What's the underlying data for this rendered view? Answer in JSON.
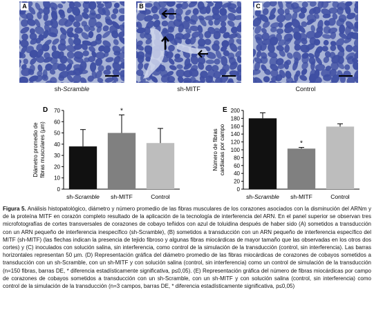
{
  "panels": [
    {
      "letter": "A",
      "caption_italic": "Scramble",
      "caption_prefix": "sh-"
    },
    {
      "letter": "B",
      "caption": "sh-MITF"
    },
    {
      "letter": "C",
      "caption": "Control"
    }
  ],
  "colors": {
    "fiber": "#3f4fa3",
    "space": "#a9b4d6",
    "bar_scramble": "#111111",
    "bar_mitf": "#808080",
    "bar_control": "#bdbdbd"
  },
  "chart_data": [
    {
      "type": "bar",
      "panel_letter": "D",
      "categories": [
        "sh-Scramble",
        "sh-MITF",
        "Control"
      ],
      "values": [
        38,
        50,
        41
      ],
      "errors": [
        15,
        16,
        13
      ],
      "significance": [
        "",
        "*",
        ""
      ],
      "ylabel": "Diámetro promedio de fibras musculares (µm)",
      "ylim": [
        0,
        70
      ],
      "yticks": [
        0,
        10,
        20,
        30,
        40,
        50,
        60,
        70
      ]
    },
    {
      "type": "bar",
      "panel_letter": "E",
      "categories": [
        "sh-Scramble",
        "sh-MITF",
        "Control"
      ],
      "values": [
        180,
        103,
        159
      ],
      "errors": [
        14,
        3,
        7
      ],
      "significance": [
        "",
        "*",
        ""
      ],
      "ylabel": "Número de fibras cardiacas por campo",
      "ylim": [
        0,
        200
      ],
      "yticks": [
        0,
        20,
        40,
        60,
        80,
        100,
        120,
        140,
        160,
        180,
        200
      ]
    }
  ],
  "caption": {
    "label": "Figura 5.",
    "body": " Análisis histopatológico, diámetro y número promedio de las fibras musculares de los corazones asociados con la disminución del ARNm y de la proteína MITF en corazón completo resultado de la aplicación de la tecnología de interferencia del ARN. En el panel superior se observan tres microfotografías de cortes transversales de corazones de cobayo teñidos con azul de toluidina después de haber sido (A) sometidos a transducción con un ARN pequeño de interferencia inespecífico (sh-Scramble), (B) sometidos a transducción con un ARN pequeño de interferencia específico del MITF (sh-MITF) (las flechas indican la presencia de tejido fibroso y algunas fibras miocárdicas de mayor tamaño que las observadas en los otros dos cortes) y (C) inoculados con solución salina, sin interferencia, como control de la simulación de la transducción (control, sin interferencia). Las barras horizontales representan 50 µm. (D) Representación gráfica del diámetro promedio de las fibras miocárdicas de corazones de cobayos sometidos a transducción con un sh-Scramble, con un sh-MITF y con solución salina (control, sin interferencia) como un control de simulación de la transducción (n=150 fibras, barras DE, * diferencia estadísticamente significativa, p≤0,05). (E) Representación gráfica del número de fibras miocárdicas por campo de corazones de cobayos sometidos a transducción con un sh-Scramble, con un sh-MITF y con solución salina (control, sin interferencia) como control de la simulación de la transducción (n=3 campos, barras DE, * diferencia estadísticamente significativa, p≤0,05)"
  }
}
